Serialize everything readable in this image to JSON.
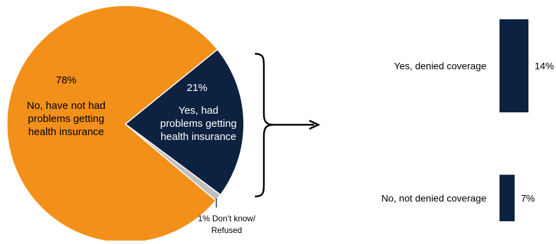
{
  "chart_data": [
    {
      "type": "pie",
      "slices": [
        {
          "label_lines": [
            "No, have not had",
            "problems getting",
            "health insurance"
          ],
          "value": 78,
          "value_label": "78%",
          "color": "#F39019",
          "text_color": "#000000"
        },
        {
          "label_lines": [
            "Yes, had",
            "problems getting",
            "health insurance"
          ],
          "value": 21,
          "value_label": "21%",
          "color": "#0D2240",
          "text_color": "#ffffff"
        },
        {
          "label_lines": [
            "1% Don’t know/",
            "Refused"
          ],
          "value": 1,
          "value_label": "",
          "color": "#BFBFBF",
          "text_color": "#000000"
        }
      ]
    },
    {
      "type": "bar",
      "orientation": "vertical",
      "categories": [
        "Yes, denied coverage",
        "No, not denied coverage"
      ],
      "values": [
        14,
        7
      ],
      "value_labels": [
        "14%",
        "7%"
      ],
      "color": "#0D2240"
    }
  ]
}
